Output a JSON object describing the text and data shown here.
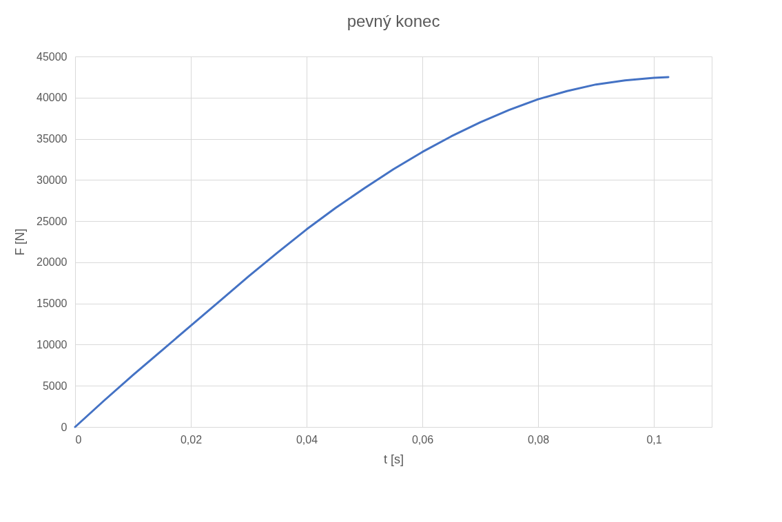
{
  "chart_data": {
    "type": "line",
    "title": "pevný konec",
    "xlabel": "t [s]",
    "ylabel": "F [N]",
    "x": [
      0,
      0.005,
      0.01,
      0.015,
      0.02,
      0.025,
      0.03,
      0.035,
      0.04,
      0.045,
      0.05,
      0.055,
      0.06,
      0.065,
      0.07,
      0.075,
      0.08,
      0.085,
      0.09,
      0.095,
      0.1,
      0.1025
    ],
    "series": [
      {
        "color": "#4472c4",
        "values": [
          0,
          3200,
          6300,
          9300,
          12300,
          15300,
          18300,
          21200,
          24000,
          26600,
          29000,
          31300,
          33400,
          35300,
          37000,
          38500,
          39800,
          40800,
          41600,
          42100,
          42400,
          42500
        ]
      }
    ],
    "xlim": [
      0,
      0.11
    ],
    "xticks": [
      0,
      {
        "value": 0.02,
        "label": "0,02"
      },
      {
        "value": 0.04,
        "label": "0,04"
      },
      {
        "value": 0.06,
        "label": "0,06"
      },
      {
        "value": 0.08,
        "label": "0,08"
      },
      {
        "value": 0.1,
        "label": "0,1"
      },
      {
        "value": 0.11,
        "label": null
      }
    ],
    "ylim": [
      0,
      45000
    ],
    "yticks": [
      0,
      5000,
      10000,
      15000,
      20000,
      25000,
      30000,
      35000,
      40000,
      45000
    ],
    "grid": true,
    "marker": "none",
    "line_style": "solid"
  }
}
